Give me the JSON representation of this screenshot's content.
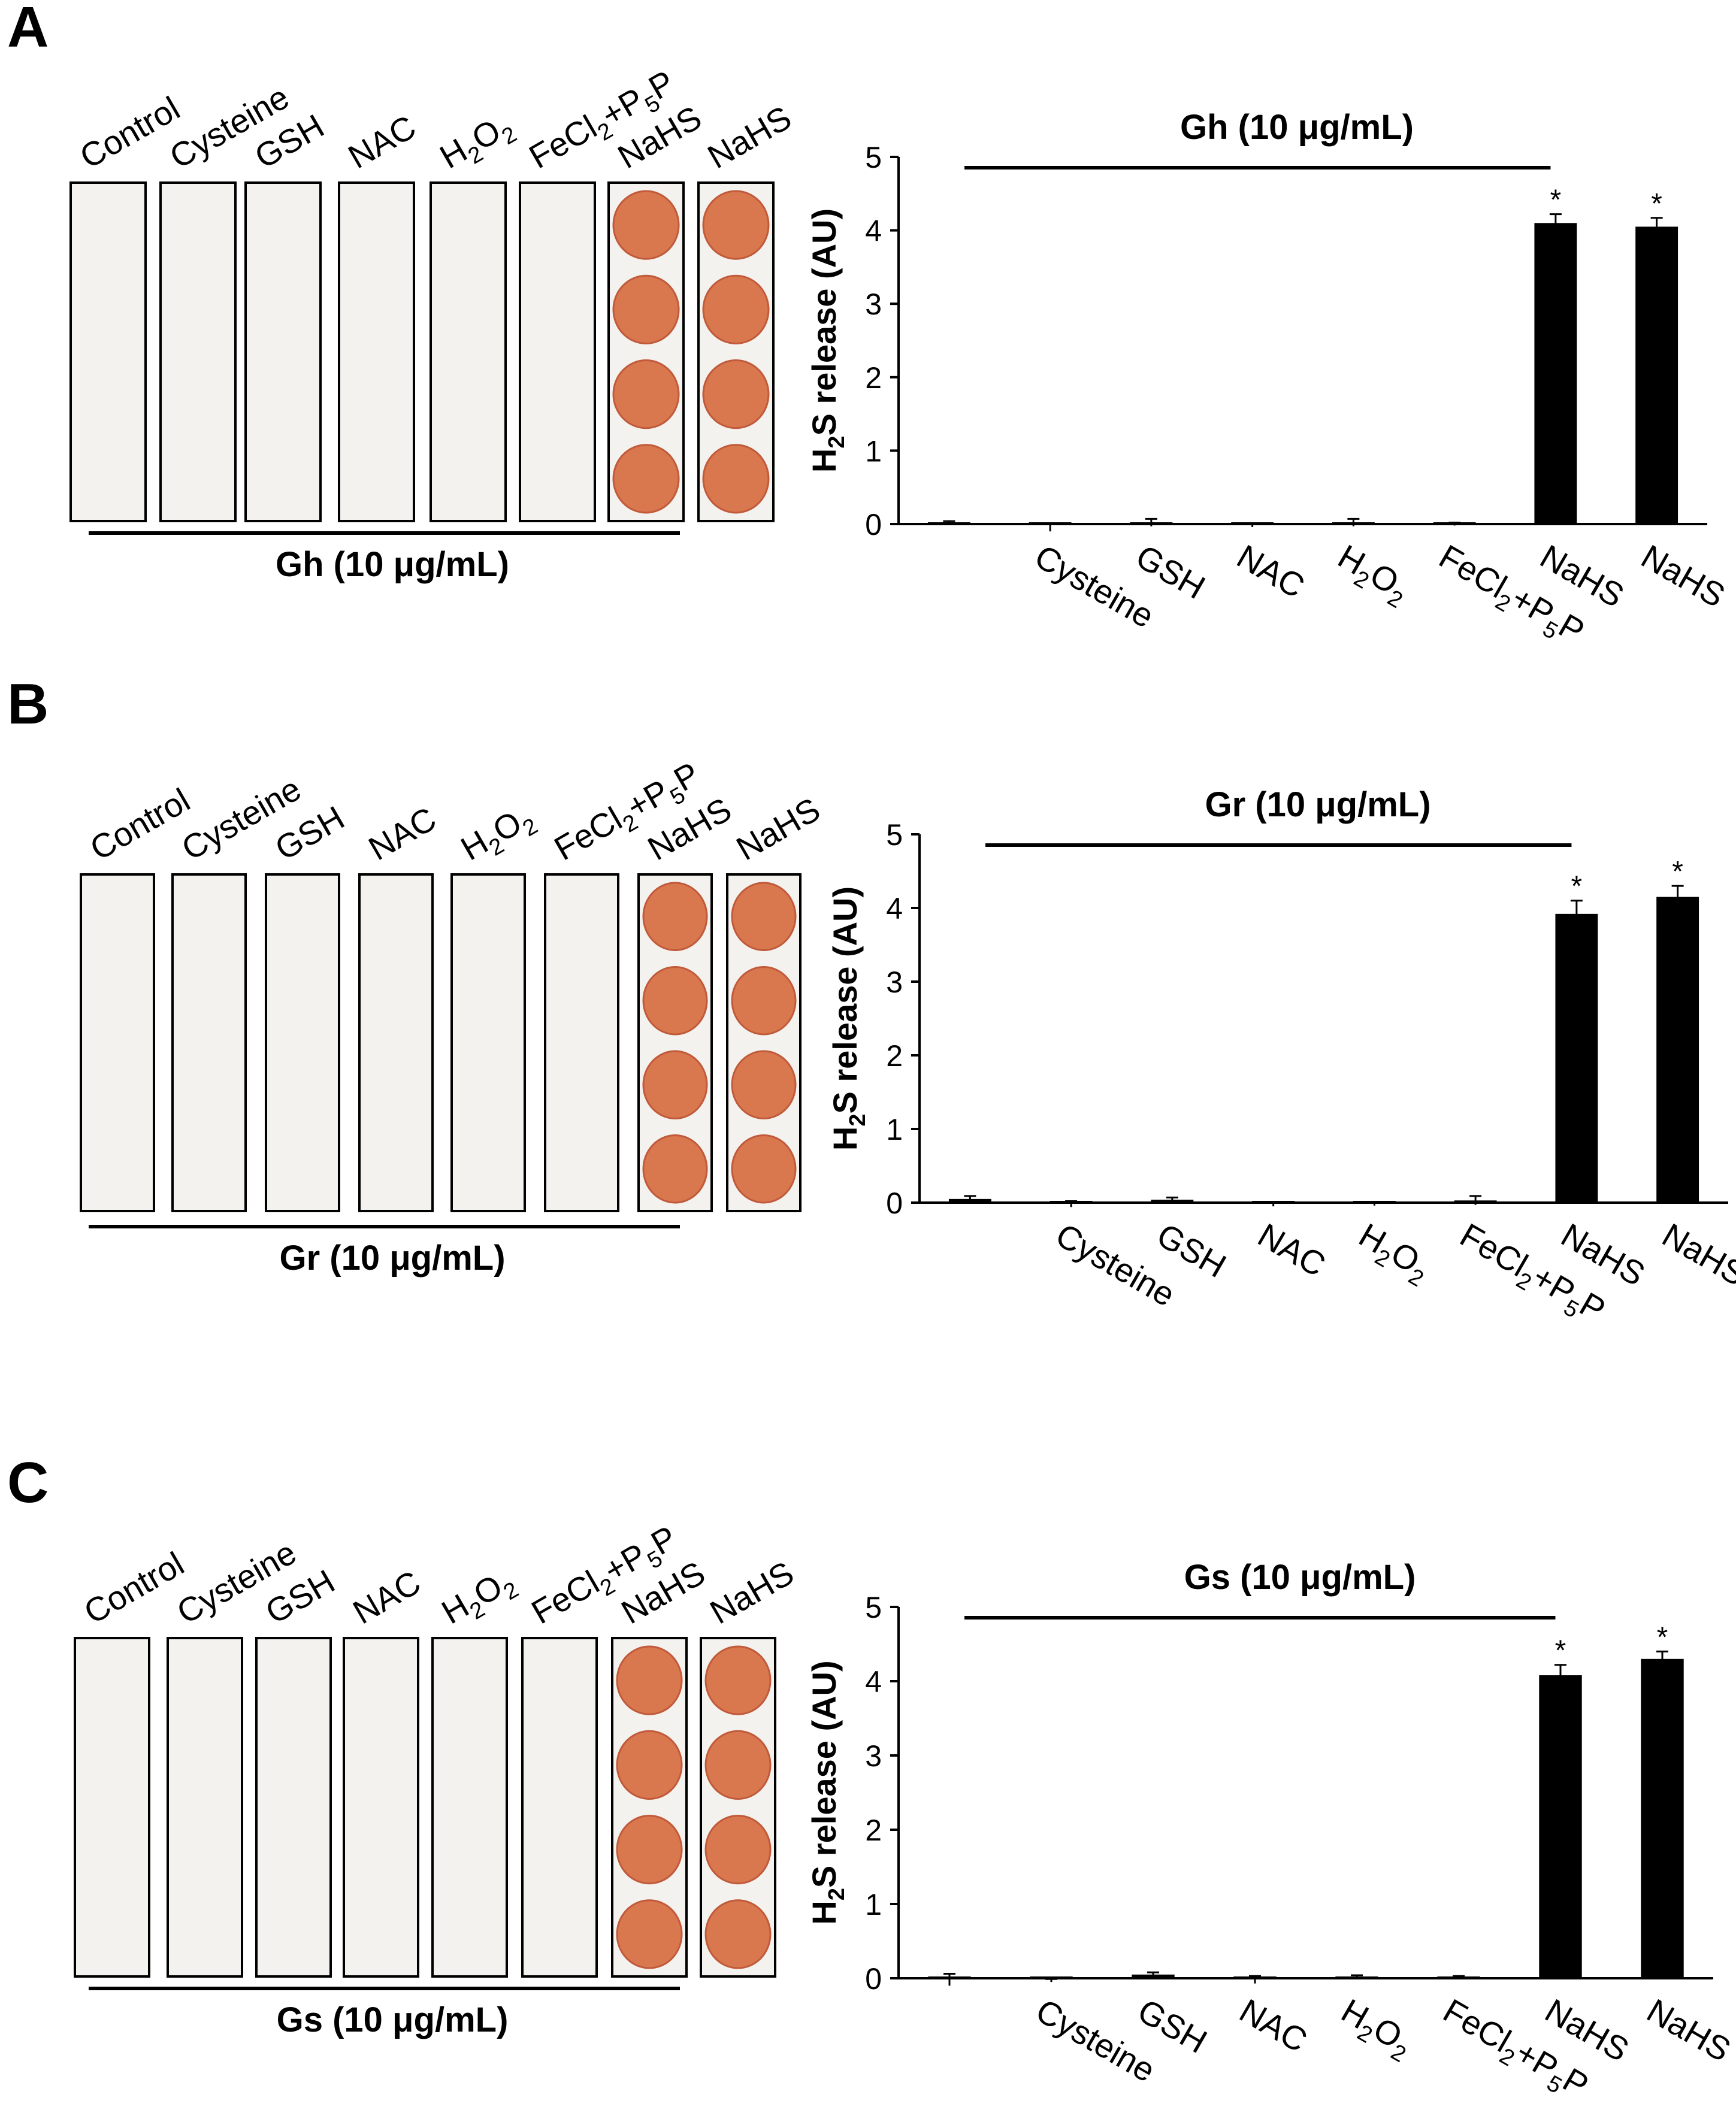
{
  "figure": {
    "panels": [
      {
        "letter": "A",
        "strip_labels": [
          "Control",
          "Cysteine",
          "GSH",
          "NAC",
          "H2O2",
          "FeCl2+P5P",
          "NaHS",
          "NaHS"
        ],
        "strip_caption": "Gh (10 μg/mL)",
        "stained": [
          false,
          false,
          false,
          false,
          false,
          false,
          true,
          true
        ]
      },
      {
        "letter": "B",
        "strip_labels": [
          "Control",
          "Cysteine",
          "GSH",
          "NAC",
          "H2O2",
          "FeCl2+P5P",
          "NaHS",
          "NaHS"
        ],
        "strip_caption": "Gr (10 μg/mL)",
        "stained": [
          false,
          false,
          false,
          false,
          false,
          false,
          true,
          true
        ]
      },
      {
        "letter": "C",
        "strip_labels": [
          "Control",
          "Cysteine",
          "GSH",
          "NAC",
          "H2O2",
          "FeCl2+P5P",
          "NaHS",
          "NaHS"
        ],
        "strip_caption": "Gs (10 μg/mL)",
        "stained": [
          false,
          false,
          false,
          false,
          false,
          false,
          true,
          true
        ]
      }
    ],
    "colors": {
      "stain": "#d9774f",
      "stain_dark": "#c05a3a",
      "strip_paper": "#f4f2ef",
      "bar": "#000000"
    }
  },
  "chart_data": [
    {
      "type": "bar",
      "panel": "A",
      "title": "Gh (10 μg/mL)",
      "ylabel": "H2S release (AU)",
      "xlabel": "",
      "categories": [
        "",
        "Cysteine",
        "GSH",
        "NAC",
        "H2O2",
        "FeCl2+P5P",
        "NaHS",
        "NaHS"
      ],
      "values": [
        0.02,
        -0.05,
        0.02,
        -0.02,
        0.02,
        0.0,
        4.1,
        4.05
      ],
      "errors": [
        0.02,
        0.05,
        0.05,
        0.02,
        0.05,
        0.02,
        0.12,
        0.12
      ],
      "significance": [
        "",
        "",
        "",
        "",
        "",
        "",
        "*",
        "*"
      ],
      "ylim": [
        0,
        5
      ],
      "yticks": [
        0,
        1,
        2,
        3,
        4,
        5
      ],
      "grid": false
    },
    {
      "type": "bar",
      "panel": "B",
      "title": "Gr (10 μg/mL)",
      "ylabel": "H2S release (AU)",
      "xlabel": "",
      "categories": [
        "",
        "Cysteine",
        "GSH",
        "NAC",
        "H2O2",
        "FeCl2+P5P",
        "NaHS",
        "NaHS"
      ],
      "values": [
        0.05,
        -0.02,
        0.04,
        -0.02,
        -0.02,
        0.03,
        3.92,
        4.15
      ],
      "errors": [
        0.04,
        0.04,
        0.03,
        0.03,
        0.02,
        0.06,
        0.18,
        0.15
      ],
      "significance": [
        "",
        "",
        "",
        "",
        "",
        "",
        "*",
        "*"
      ],
      "ylim": [
        0,
        5
      ],
      "yticks": [
        0,
        1,
        2,
        3,
        4,
        5
      ],
      "grid": false
    },
    {
      "type": "bar",
      "panel": "C",
      "title": "Gs (10 μg/mL)",
      "ylabel": "H2S release (AU)",
      "xlabel": "",
      "categories": [
        "",
        "Cysteine",
        "GSH",
        "NAC",
        "H2O2",
        "FeCl2+P5P",
        "NaHS",
        "NaHS"
      ],
      "values": [
        -0.02,
        -0.03,
        0.05,
        -0.02,
        0.02,
        0.01,
        4.08,
        4.3
      ],
      "errors": [
        0.08,
        0.02,
        0.03,
        0.05,
        0.02,
        0.02,
        0.14,
        0.1
      ],
      "significance": [
        "",
        "",
        "",
        "",
        "",
        "",
        "*",
        "*"
      ],
      "ylim": [
        0,
        5
      ],
      "yticks": [
        0,
        1,
        2,
        3,
        4,
        5
      ],
      "grid": false
    }
  ]
}
